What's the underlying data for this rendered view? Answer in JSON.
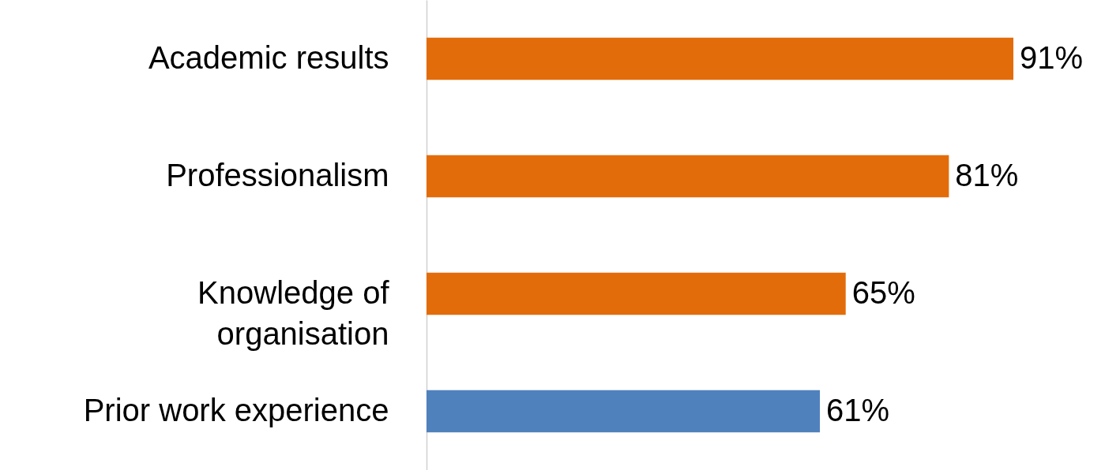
{
  "chart_data": {
    "type": "bar",
    "orientation": "horizontal",
    "categories": [
      "Academic results",
      "Professionalism",
      "Knowledge of organisation",
      "Prior work experience"
    ],
    "values": [
      91,
      81,
      65,
      61
    ],
    "colors": [
      "#e36c0a",
      "#e36c0a",
      "#e36c0a",
      "#4f81bd"
    ],
    "value_labels": [
      "91%",
      "81%",
      "65%",
      "61%"
    ]
  }
}
